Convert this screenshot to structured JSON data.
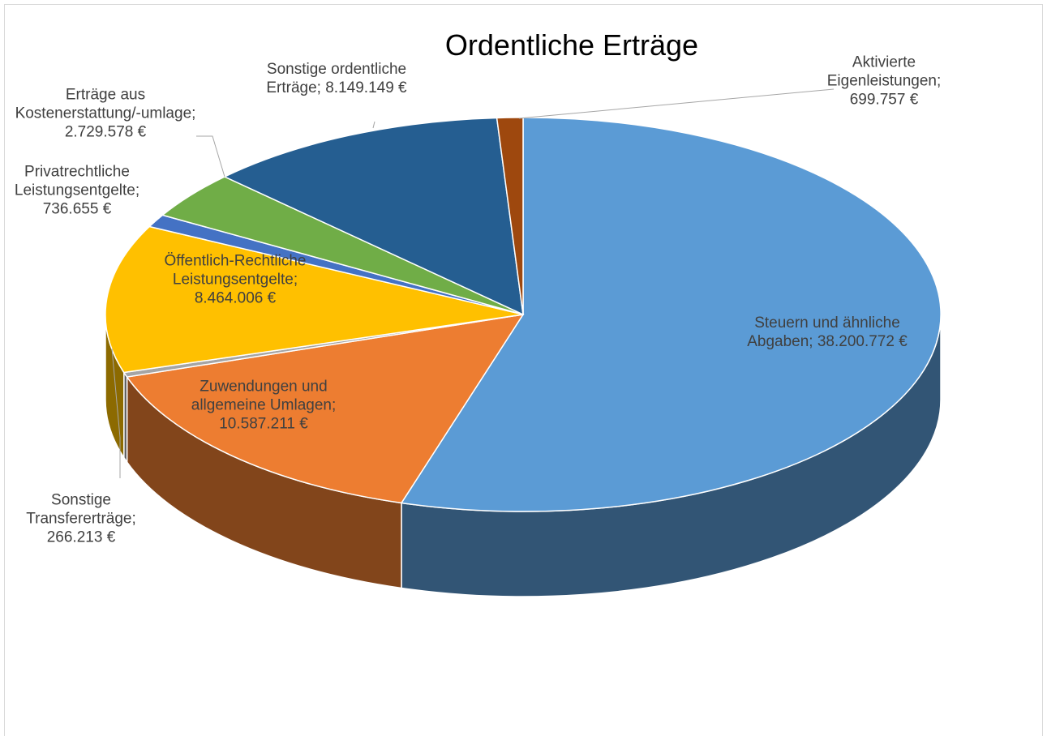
{
  "chart_data": {
    "type": "pie3d",
    "title": "Ordentliche Erträge",
    "values": [
      38200772,
      10587211,
      266213,
      8464006,
      736655,
      2729578,
      8149149,
      699757
    ],
    "value_labels": [
      "Steuern und ähnliche Abgaben; 38.200.772 €",
      "Zuwendungen und allgemeine Umlagen; 10.587.211 €",
      "Sonstige Transfererträge; 266.213 €",
      "Öffentlich-Rechtliche Leistungsentgelte; 8.464.006 €",
      "Privatrechtliche Leistungsentgelte; 736.655 €",
      "Erträge aus Kostenerstattung/-umlage; 2.729.578 €",
      "Sonstige ordentliche Erträge; 8.149.149 €",
      "Aktivierte Eigenleistungen; 699.757 €"
    ],
    "colors": [
      "#5b9bd5",
      "#ed7d31",
      "#a5a5a5",
      "#ffc000",
      "#4472c4",
      "#70ad47",
      "#255e91",
      "#9e480e"
    ]
  }
}
